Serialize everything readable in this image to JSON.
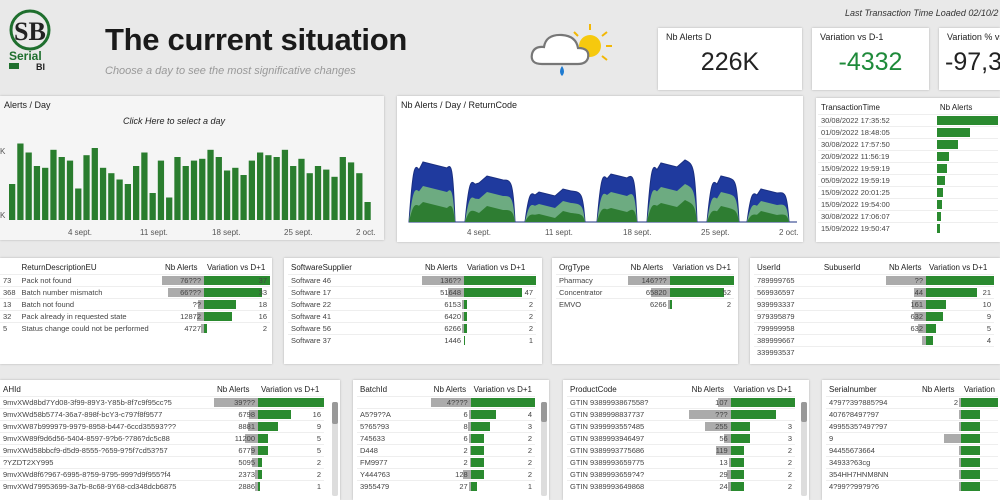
{
  "logo": {
    "line1": "Serial",
    "line2": "BI",
    "mark": "SB"
  },
  "header": {
    "title": "The current situation",
    "subtitle": "Choose a day to see the most significative changes",
    "last_tx": "Last Transaction Time Loaded   02/10/2"
  },
  "weather_icon": "cloud-rain-sun-icon",
  "kpis": [
    {
      "label": "Nb Alerts D",
      "value": "226K",
      "color": "#222222"
    },
    {
      "label": "Variation vs D-1",
      "value": "-4332",
      "color": "#1e8a3a"
    },
    {
      "label": "Variation % vs",
      "value": "-97,3",
      "color": "#1e8a3a"
    }
  ],
  "alerts_day": {
    "title": "Alerts / Day",
    "hint": "Click Here to select a day",
    "color": "#2a7d2e",
    "chart_data": {
      "type": "bar",
      "x_ticks": [
        "4 sept.",
        "11 sept.",
        "18 sept.",
        "25 sept.",
        "2 oct."
      ],
      "values": [
        40,
        85,
        75,
        60,
        58,
        78,
        70,
        66,
        35,
        72,
        80,
        58,
        52,
        45,
        40,
        60,
        75,
        30,
        66,
        25,
        70,
        60,
        66,
        68,
        78,
        70,
        55,
        58,
        50,
        66,
        75,
        72,
        70,
        78,
        60,
        68,
        52,
        60,
        56,
        48,
        70,
        64,
        52,
        20,
        0
      ],
      "y_ticks": [
        "K",
        "K",
        "K"
      ]
    }
  },
  "returncode": {
    "title": "Nb Alerts / Day / ReturnCode",
    "x_ticks": [
      "4 sept.",
      "11 sept.",
      "18 sept.",
      "25 sept.",
      "2 oct."
    ],
    "chart_data": {
      "type": "area",
      "series": [
        {
          "color": "#1f3a9e"
        },
        {
          "color": "#7bbf7b"
        },
        {
          "color": "#2e7d32"
        }
      ]
    }
  },
  "tx_time": {
    "headers": [
      "TransactionTime",
      "Nb Alerts"
    ],
    "rows": [
      [
        "30/08/2022 17:35:52",
        1
      ],
      [
        "01/09/2022 18:48:05",
        0.55
      ],
      [
        "30/08/2022 17:57:50",
        0.35
      ],
      [
        "20/09/2022 11:56:19",
        0.2
      ],
      [
        "15/09/2022 19:59:19",
        0.16
      ],
      [
        "05/09/2022 19:59:19",
        0.13
      ],
      [
        "15/09/2022 20:01:25",
        0.1
      ],
      [
        "15/09/2022 19:54:00",
        0.08
      ],
      [
        "30/08/2022 17:06:07",
        0.06
      ],
      [
        "15/09/2022 19:50:47",
        0.05
      ]
    ]
  },
  "return_desc": {
    "headers": [
      "",
      "ReturnDescriptionEU",
      "Nb Alerts",
      "Variation vs D+1"
    ],
    "rows": [
      [
        "73",
        "Pack not found",
        "76???",
        1,
        "37",
        1
      ],
      [
        "368",
        "Batch number mismatch",
        "66???",
        0.86,
        "33",
        0.88
      ],
      [
        "13",
        "Batch not found",
        "??",
        0.15,
        "18",
        0.48
      ],
      [
        "32",
        "Pack already in requested state",
        "12872",
        0.17,
        "16",
        0.42
      ],
      [
        "5",
        "Status change could not be performed",
        "4727",
        0.06,
        "2",
        0.05
      ]
    ]
  },
  "software": {
    "headers": [
      "SoftwareSupplier",
      "Nb Alerts",
      "Variation vs D+1"
    ],
    "rows": [
      [
        "Software 46",
        "136??",
        1,
        "",
        1
      ],
      [
        "Software 17",
        "51648",
        0.38,
        "47",
        0.8
      ],
      [
        "Software 22",
        "6153",
        0.05,
        "2",
        0.04
      ],
      [
        "Software 41",
        "6420",
        0.05,
        "2",
        0.04
      ],
      [
        "Software 56",
        "6266",
        0.05,
        "2",
        0.04
      ],
      [
        "Software 37",
        "1446",
        0.01,
        "1",
        0.02
      ]
    ]
  },
  "orgtype": {
    "headers": [
      "OrgType",
      "Nb Alerts",
      "Variation vs D+1"
    ],
    "rows": [
      [
        "Pharmacy",
        "146???",
        1,
        "",
        1
      ],
      [
        "Concentrator",
        "65820",
        0.45,
        "52",
        0.85
      ],
      [
        "EMVO",
        "6266",
        0.04,
        "2",
        0.03
      ]
    ]
  },
  "users": {
    "headers": [
      "UserId",
      "SubuserId",
      "Nb Alerts",
      "Variation vs D+1"
    ],
    "rows": [
      [
        "789999765",
        "",
        "??",
        1,
        "",
        1
      ],
      [
        "569936597",
        "",
        "44",
        0.3,
        "21",
        0.75
      ],
      [
        "939993337",
        "",
        "161",
        0.35,
        "10",
        0.3
      ],
      [
        "979395879",
        "",
        "632",
        0.3,
        "9",
        0.25
      ],
      [
        "799999958",
        "",
        "632",
        0.2,
        "5",
        0.14
      ],
      [
        "389999667",
        "",
        "",
        0.1,
        "4",
        0.1
      ],
      [
        "339993537",
        "",
        "",
        0,
        "",
        0
      ]
    ]
  },
  "ahid": {
    "headers": [
      "AHId",
      "Nb Alerts",
      "Variation vs D+1"
    ],
    "rows": [
      [
        "9mvXWd8bd7Yd08-3f99-89Y3-Y85b-8f7c9f95cc?5",
        "39???",
        1,
        "",
        1
      ],
      [
        "9mvXWd58b5774-36a7-898f-bcY3-c797f8f9577",
        "6798",
        0.2,
        "16",
        0.5
      ],
      [
        "9mvXW87b999979-9979-8958-b447-6ccd35593???",
        "8881",
        0.22,
        "9",
        0.3
      ],
      [
        "9mvXW89f9d6d56-5404-8597-9?b6-?786?dc5c88",
        "11200",
        0.3,
        "5",
        0.15
      ],
      [
        "9mvXWd58bbcf9-d5d9-8555-?659-9?5f7cd53?57",
        "6779",
        0.17,
        "5",
        0.15
      ],
      [
        "?YZDT2XY995",
        "5095",
        0.13,
        "2",
        0.06
      ],
      [
        "9mvXWd8f6?967-6995-8?59-9795-999?d9f955?f4",
        "2373",
        0.06,
        "2",
        0.06
      ],
      [
        "9mvXWd79953699-3a7b-8c68-9Y68-cd348dcb6875",
        "2886",
        0.07,
        "1",
        0.03
      ]
    ]
  },
  "batch": {
    "headers": [
      "BatchId",
      "Nb Alerts",
      "Variation vs D+1"
    ],
    "rows": [
      [
        "",
        "4????",
        1,
        "",
        1
      ],
      [
        "A5?9??A",
        "6",
        0.05,
        "4",
        0.4
      ],
      [
        "5?65?93",
        "8",
        0.06,
        "3",
        0.3
      ],
      [
        "745633",
        "6",
        0.05,
        "2",
        0.2
      ],
      [
        "D448",
        "2",
        0.02,
        "2",
        0.2
      ],
      [
        "FM9977",
        "2",
        0.02,
        "2",
        0.2
      ],
      [
        "Y444?63",
        "128",
        0.2,
        "2",
        0.2
      ],
      [
        "3955479",
        "27",
        0.05,
        "1",
        0.1
      ]
    ]
  },
  "product": {
    "headers": [
      "ProductCode",
      "Nb Alerts",
      "Variation vs D+1"
    ],
    "rows": [
      [
        "GTIN 9389993867558?",
        "107",
        0.3,
        "",
        1
      ],
      [
        "GTIN 9389998837737",
        "???",
        1,
        "",
        0.7
      ],
      [
        "GTIN 939999355?485",
        "255",
        0.6,
        "3",
        0.3
      ],
      [
        "GTIN 9389993946497",
        "56",
        0.15,
        "3",
        0.3
      ],
      [
        "GTIN 9389993775686",
        "119",
        0.35,
        "2",
        0.2
      ],
      [
        "GTIN 9389993659775",
        "13",
        0.05,
        "2",
        0.2
      ],
      [
        "GTIN 9389993659?4?",
        "29",
        0.08,
        "2",
        0.2
      ],
      [
        "GTIN 9389993649868",
        "24",
        0.07,
        "2",
        0.2
      ]
    ]
  },
  "serial": {
    "headers": [
      "Serialnumber",
      "Nb Alerts",
      "Variation"
    ],
    "rows": [
      [
        "4?97?39?885?94",
        "2",
        0.05,
        "",
        1
      ],
      [
        "4076?8497?97",
        "",
        0.05,
        "",
        0.5
      ],
      [
        "4995535?497?97",
        "",
        0.05,
        "",
        0.5
      ],
      [
        "9",
        "",
        0.4,
        "",
        0.5
      ],
      [
        "94455673664",
        "",
        0.05,
        "",
        0.5
      ],
      [
        "34933?63cg",
        "",
        0.05,
        "",
        0.5
      ],
      [
        "354HH7HNM8NN",
        "",
        0.05,
        "",
        0.5
      ],
      [
        "4?99??99?9?6",
        "",
        0.05,
        "",
        0.5
      ]
    ]
  }
}
